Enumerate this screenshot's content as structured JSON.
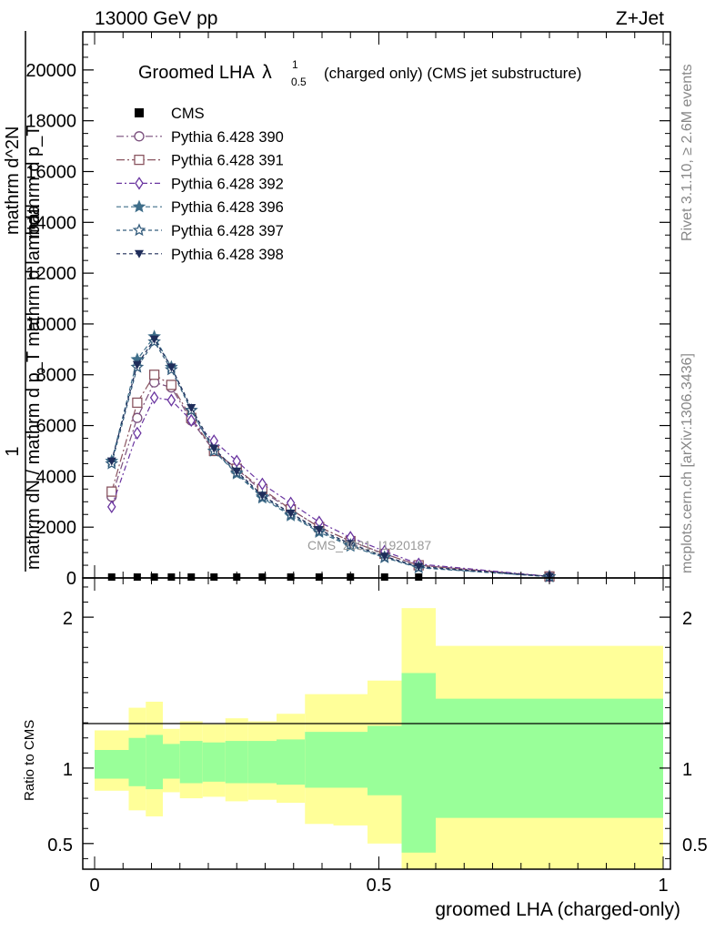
{
  "header": {
    "left": "13000 GeV pp",
    "right": "Z+Jet"
  },
  "side_labels": {
    "rivet": "Rivet 3.1.10, ≥ 2.6M events",
    "mcplots": "mcplots.cern.ch [arXiv:1306.3436]"
  },
  "chart_data": [
    {
      "type": "line",
      "title": "Groomed LHA",
      "title_symbol": "λ",
      "title_sup": "1",
      "title_sub": "0.5",
      "title_suffix": "(charged only) (CMS jet substructure)",
      "ylabel_top": "1",
      "ylabel_upper": "mathrm dN / mathrm d p_T mathrm d lambda",
      "ylabel_lower": "mathrm d^2N",
      "ylabel_mid": "mathrm d p_T",
      "watermark": "CMS_2021_I1920187",
      "ylim": [
        0,
        21500
      ],
      "yticks": [
        0,
        2000,
        4000,
        6000,
        8000,
        10000,
        12000,
        14000,
        16000,
        18000,
        20000
      ],
      "grid": false,
      "legend_position": "top-left",
      "cms": {
        "name": "CMS",
        "x": [
          0.03,
          0.075,
          0.105,
          0.135,
          0.17,
          0.21,
          0.25,
          0.295,
          0.345,
          0.395,
          0.45,
          0.51,
          0.57
        ],
        "y": [
          0,
          0,
          0,
          0,
          0,
          0,
          0,
          0,
          0,
          0,
          0,
          0,
          0
        ]
      },
      "series": [
        {
          "name": "Pythia 6.428 390",
          "color": "#7a4f7d",
          "marker": "circle-open",
          "dash": "8,3,2,3",
          "x": [
            0.03,
            0.075,
            0.105,
            0.135,
            0.17,
            0.21,
            0.25,
            0.295,
            0.345,
            0.395,
            0.45,
            0.51,
            0.57,
            0.8
          ],
          "y": [
            3200,
            6300,
            7700,
            7500,
            6200,
            5000,
            4300,
            3400,
            2700,
            2000,
            1450,
            950,
            500,
            60
          ]
        },
        {
          "name": "Pythia 6.428 391",
          "color": "#8a5560",
          "marker": "square-open",
          "dash": "9,3,2,3",
          "x": [
            0.03,
            0.075,
            0.105,
            0.135,
            0.17,
            0.21,
            0.25,
            0.295,
            0.345,
            0.395,
            0.45,
            0.51,
            0.57,
            0.8
          ],
          "y": [
            3400,
            6900,
            8000,
            7600,
            6300,
            5000,
            4300,
            3500,
            2700,
            2000,
            1450,
            950,
            500,
            60
          ]
        },
        {
          "name": "Pythia 6.428 392",
          "color": "#6a35a0",
          "marker": "diamond-open",
          "dash": "6,3,2,3",
          "x": [
            0.03,
            0.075,
            0.105,
            0.135,
            0.17,
            0.21,
            0.25,
            0.295,
            0.345,
            0.395,
            0.45,
            0.51,
            0.57,
            0.8
          ],
          "y": [
            2800,
            5700,
            7100,
            7000,
            6200,
            5400,
            4600,
            3700,
            2950,
            2200,
            1600,
            1050,
            550,
            60
          ]
        },
        {
          "name": "Pythia 6.428 396",
          "color": "#3f6e8a",
          "marker": "star-filled",
          "dash": "5,3",
          "x": [
            0.03,
            0.075,
            0.105,
            0.135,
            0.17,
            0.21,
            0.25,
            0.295,
            0.345,
            0.395,
            0.45,
            0.51,
            0.57,
            0.8
          ],
          "y": [
            4600,
            8600,
            9500,
            8300,
            6600,
            5000,
            4100,
            3150,
            2450,
            1800,
            1250,
            800,
            400,
            50
          ]
        },
        {
          "name": "Pythia 6.428 397",
          "color": "#355d7d",
          "marker": "star-open",
          "dash": "4,3",
          "x": [
            0.03,
            0.075,
            0.105,
            0.135,
            0.17,
            0.21,
            0.25,
            0.295,
            0.345,
            0.395,
            0.45,
            0.51,
            0.57,
            0.8
          ],
          "y": [
            4500,
            8300,
            9300,
            8200,
            6600,
            5000,
            4150,
            3200,
            2500,
            1850,
            1300,
            820,
            420,
            50
          ]
        },
        {
          "name": "Pythia 6.428 398",
          "color": "#1f2d5a",
          "marker": "triangle-down-filled",
          "dash": "4,3",
          "x": [
            0.03,
            0.075,
            0.105,
            0.135,
            0.17,
            0.21,
            0.25,
            0.295,
            0.345,
            0.395,
            0.45,
            0.51,
            0.57,
            0.8
          ],
          "y": [
            4600,
            8400,
            9400,
            8300,
            6700,
            5100,
            4200,
            3250,
            2550,
            1900,
            1350,
            850,
            450,
            60
          ]
        }
      ]
    },
    {
      "type": "area",
      "ylabel": "Ratio to CMS",
      "xlabel": "groomed LHA (charged-only)",
      "xlim": [
        0,
        1
      ],
      "ylim": [
        0.33,
        2.26
      ],
      "yticks": [
        0.5,
        1,
        2
      ],
      "xticks": [
        0,
        0.5,
        1
      ],
      "reference_line": 1,
      "bins": [
        {
          "x0": 0.0,
          "x1": 0.06,
          "green": [
            0.93,
            1.12
          ],
          "yellow": [
            0.85,
            1.25
          ]
        },
        {
          "x0": 0.06,
          "x1": 0.09,
          "green": [
            0.88,
            1.2
          ],
          "yellow": [
            0.72,
            1.4
          ]
        },
        {
          "x0": 0.09,
          "x1": 0.12,
          "green": [
            0.86,
            1.22
          ],
          "yellow": [
            0.68,
            1.44
          ]
        },
        {
          "x0": 0.12,
          "x1": 0.15,
          "green": [
            0.93,
            1.16
          ],
          "yellow": [
            0.84,
            1.26
          ]
        },
        {
          "x0": 0.15,
          "x1": 0.19,
          "green": [
            0.9,
            1.18
          ],
          "yellow": [
            0.8,
            1.31
          ]
        },
        {
          "x0": 0.19,
          "x1": 0.23,
          "green": [
            0.91,
            1.17
          ],
          "yellow": [
            0.81,
            1.29
          ]
        },
        {
          "x0": 0.23,
          "x1": 0.27,
          "green": [
            0.9,
            1.18
          ],
          "yellow": [
            0.78,
            1.33
          ]
        },
        {
          "x0": 0.27,
          "x1": 0.32,
          "green": [
            0.9,
            1.18
          ],
          "yellow": [
            0.79,
            1.31
          ]
        },
        {
          "x0": 0.32,
          "x1": 0.37,
          "green": [
            0.89,
            1.19
          ],
          "yellow": [
            0.77,
            1.36
          ]
        },
        {
          "x0": 0.37,
          "x1": 0.42,
          "green": [
            0.87,
            1.24
          ],
          "yellow": [
            0.63,
            1.49
          ]
        },
        {
          "x0": 0.42,
          "x1": 0.48,
          "green": [
            0.87,
            1.24
          ],
          "yellow": [
            0.62,
            1.49
          ]
        },
        {
          "x0": 0.48,
          "x1": 0.54,
          "green": [
            0.82,
            1.28
          ],
          "yellow": [
            0.5,
            1.58
          ]
        },
        {
          "x0": 0.54,
          "x1": 0.6,
          "green": [
            0.44,
            1.63
          ],
          "yellow": [
            0.33,
            2.06
          ]
        },
        {
          "x0": 0.6,
          "x1": 1.0,
          "green": [
            0.67,
            1.46
          ],
          "yellow": [
            0.33,
            1.81
          ]
        }
      ],
      "colors": {
        "green": "#99ff99",
        "yellow": "#ffff99"
      }
    }
  ]
}
